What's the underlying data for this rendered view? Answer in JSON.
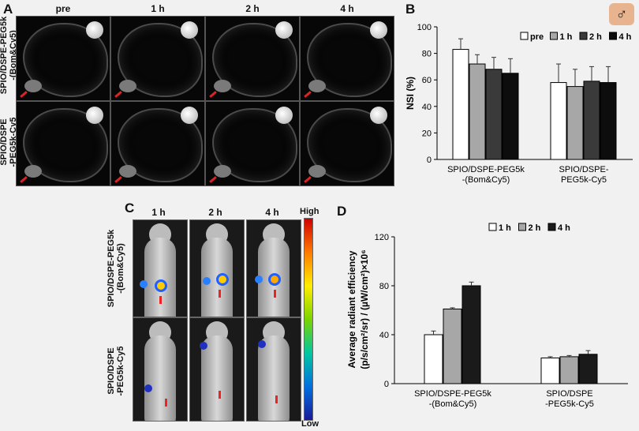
{
  "panels": {
    "a": "A",
    "b": "B",
    "c": "C",
    "d": "D"
  },
  "mri": {
    "timepoints": [
      "pre",
      "1 h",
      "2 h",
      "4 h"
    ],
    "rows": [
      "SPIO/DSPE-PEG5k\n-(Bom&Cy5)",
      "SPIO/DSPE\n-PEG5k-Cy5"
    ]
  },
  "fluor": {
    "timepoints": [
      "1 h",
      "2 h",
      "4 h"
    ],
    "rows": [
      "SPIO/DSPE-PEG5k\n-(Bom&Cy5)",
      "SPIO/DSPE\n-PEG5k-Cy5"
    ],
    "scale_high": "High",
    "scale_low": "Low"
  },
  "chart_data": [
    {
      "type": "bar",
      "ylabel": "NSI (%)",
      "ylim": [
        0,
        100
      ],
      "yticks": [
        0,
        20,
        40,
        60,
        80,
        100
      ],
      "categories": [
        "SPIO/DSPE-PEG5k\n-(Bom&Cy5)",
        "SPIO/DSPE-\nPEG5k-Cy5"
      ],
      "series": [
        {
          "name": "pre",
          "color": "#ffffff",
          "values": [
            83,
            58
          ],
          "errors": [
            8,
            14
          ]
        },
        {
          "name": "1 h",
          "color": "#a7a7a7",
          "values": [
            72,
            55
          ],
          "errors": [
            7,
            13
          ]
        },
        {
          "name": "2 h",
          "color": "#3a3a3a",
          "values": [
            68,
            59
          ],
          "errors": [
            9,
            11
          ]
        },
        {
          "name": "4 h",
          "color": "#0d0d0d",
          "values": [
            65,
            58
          ],
          "errors": [
            11,
            12
          ]
        }
      ],
      "legend": "top-right"
    },
    {
      "type": "bar",
      "ylabel_line1": "Average radiant efficiency",
      "ylabel_line2": "(p/s/cm²/sr) / (µW/cm²)×10⁶",
      "ylim": [
        0,
        120
      ],
      "yticks": [
        0,
        40,
        80,
        120
      ],
      "categories": [
        "SPIO/DSPE-PEG5k\n-(Bom&Cy5)",
        "SPIO/DSPE\n-PEG5k-Cy5"
      ],
      "series": [
        {
          "name": "1 h",
          "color": "#ffffff",
          "values": [
            40,
            21
          ],
          "errors": [
            3,
            1
          ]
        },
        {
          "name": "2 h",
          "color": "#a7a7a7",
          "values": [
            61,
            22
          ],
          "errors": [
            1,
            1
          ]
        },
        {
          "name": "4 h",
          "color": "#1a1a1a",
          "values": [
            80,
            24
          ],
          "errors": [
            3,
            3
          ]
        }
      ],
      "legend": "top-right"
    }
  ]
}
